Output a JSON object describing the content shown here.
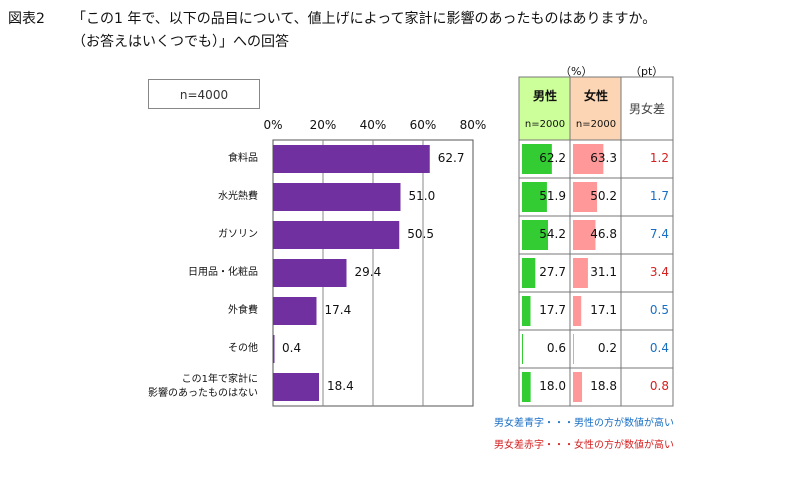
{
  "figure_label": "図表2",
  "title_line1": "「この1 年で、以下の品目について、値上げによって家計に影響のあったものはありますか。",
  "title_line2": "（お答えはいくつでも）」への回答",
  "sample_label": "n=4000",
  "table_units": {
    "percent": "（%）",
    "points": "（pt）"
  },
  "table_headers": {
    "male": "男性",
    "male_n": "n=2000",
    "female": "女性",
    "female_n": "n=2000",
    "diff": "男女差"
  },
  "notes": {
    "blue": "男女差青字・・・男性の方が数値が高い",
    "red": "男女差赤字・・・女性の方が数値が高い"
  },
  "colors": {
    "bar": "#7030a0",
    "male_bar": "#33cc33",
    "female_bar": "#ff9999",
    "male_header": "#ccff99",
    "female_header": "#fcd5b4",
    "diff_blue": "#1a6fc4",
    "diff_red": "#d42020",
    "grid": "#888888"
  },
  "chart_data": {
    "type": "bar",
    "orientation": "horizontal",
    "categories": [
      "食料品",
      "水光熱費",
      "ガソリン",
      "日用品・化粧品",
      "外食費",
      "その他",
      "この1年で家計に影響のあったものはない"
    ],
    "category_lines": [
      [
        "食料品"
      ],
      [
        "水光熱費"
      ],
      [
        "ガソリン"
      ],
      [
        "日用品・化粧品"
      ],
      [
        "外食費"
      ],
      [
        "その他"
      ],
      [
        "この1年で家計に",
        "影響のあったものはない"
      ]
    ],
    "values": [
      62.7,
      51.0,
      50.5,
      29.4,
      17.4,
      0.4,
      18.4
    ],
    "value_labels": [
      "62.7",
      "51.0",
      "50.5",
      "29.4",
      "17.4",
      "0.4",
      "18.4"
    ],
    "xlim": [
      0,
      80
    ],
    "xticks": [
      "0%",
      "20%",
      "40%",
      "60%",
      "80%"
    ],
    "grid": true
  },
  "gender_table": {
    "male": [
      62.2,
      51.9,
      54.2,
      27.7,
      17.7,
      0.6,
      18.0
    ],
    "male_labels": [
      "62.2",
      "51.9",
      "54.2",
      "27.7",
      "17.7",
      "0.6",
      "18.0"
    ],
    "female": [
      63.3,
      50.2,
      46.8,
      31.1,
      17.1,
      0.2,
      18.8
    ],
    "female_labels": [
      "63.3",
      "50.2",
      "46.8",
      "31.1",
      "17.1",
      "0.2",
      "18.8"
    ],
    "diff_labels": [
      "1.2",
      "1.7",
      "7.4",
      "3.4",
      "0.5",
      "0.4",
      "0.8"
    ],
    "diff_color": [
      "red",
      "blue",
      "blue",
      "red",
      "blue",
      "blue",
      "red"
    ]
  }
}
